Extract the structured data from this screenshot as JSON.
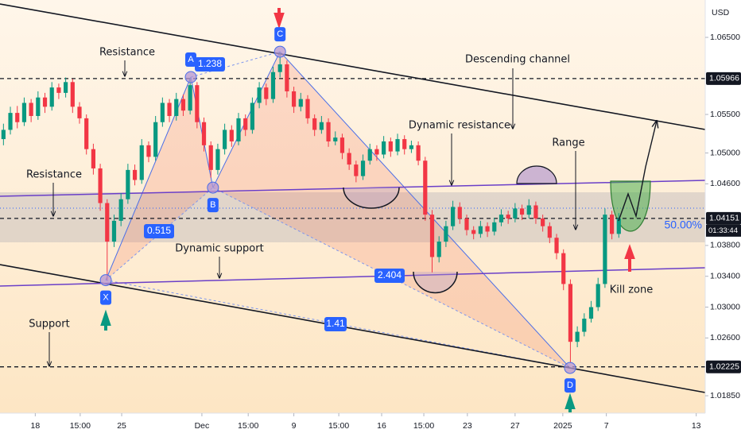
{
  "chart_data": {
    "type": "candlestick",
    "currency": "USD",
    "ylim": [
      1.01624,
      1.06985
    ],
    "xlim": [
      0,
      102
    ],
    "yticks": [
      {
        "value": 1.065,
        "label": "1.06500"
      },
      {
        "value": 1.055,
        "label": "1.05500"
      },
      {
        "value": 1.05,
        "label": "1.05000"
      },
      {
        "value": 1.046,
        "label": "1.04600"
      },
      {
        "value": 1.038,
        "label": "1.03800"
      },
      {
        "value": 1.034,
        "label": "1.03400"
      },
      {
        "value": 1.03,
        "label": "1.03000"
      },
      {
        "value": 1.026,
        "label": "1.02600"
      },
      {
        "value": 1.0185,
        "label": "1.01850"
      }
    ],
    "price_lines": [
      {
        "value": 1.05966,
        "label": "1.05966"
      },
      {
        "value": 1.02225,
        "label": "1.02225"
      },
      {
        "value": 1.04151,
        "label": "1.04151"
      }
    ],
    "countdown": "01:33:44",
    "xticks": [
      {
        "value": 5.1,
        "label": "18"
      },
      {
        "value": 11.6,
        "label": "15:00"
      },
      {
        "value": 17.6,
        "label": "25"
      },
      {
        "value": 29.2,
        "label": "Dec"
      },
      {
        "value": 35.9,
        "label": "15:00"
      },
      {
        "value": 42.5,
        "label": "9"
      },
      {
        "value": 49,
        "label": "15:00"
      },
      {
        "value": 55.2,
        "label": "16"
      },
      {
        "value": 61.3,
        "label": "15:00"
      },
      {
        "value": 67.6,
        "label": "23"
      },
      {
        "value": 74.5,
        "label": "27"
      },
      {
        "value": 81.4,
        "label": "2025"
      },
      {
        "value": 87.7,
        "label": "7"
      },
      {
        "value": 100.7,
        "label": "13"
      }
    ],
    "up_color": "#089981",
    "down_color": "#f23645",
    "ohlc": [
      [
        1.0518,
        1.0538,
        1.051,
        1.053
      ],
      [
        1.053,
        1.056,
        1.0524,
        1.0552
      ],
      [
        1.0552,
        1.0561,
        1.0532,
        1.054
      ],
      [
        1.054,
        1.0572,
        1.0535,
        1.0565
      ],
      [
        1.0565,
        1.057,
        1.054,
        1.0548
      ],
      [
        1.0548,
        1.058,
        1.0543,
        1.0572
      ],
      [
        1.0572,
        1.0578,
        1.0552,
        1.056
      ],
      [
        1.056,
        1.0592,
        1.0555,
        1.0585
      ],
      [
        1.0585,
        1.059,
        1.057,
        1.0578
      ],
      [
        1.0578,
        1.0598,
        1.0572,
        1.0592
      ],
      [
        1.0592,
        1.0596,
        1.0552,
        1.056
      ],
      [
        1.056,
        1.0566,
        1.0538,
        1.0545
      ],
      [
        1.0545,
        1.055,
        1.0498,
        1.0505
      ],
      [
        1.0505,
        1.0512,
        1.0472,
        1.048
      ],
      [
        1.048,
        1.0486,
        1.0425,
        1.0435
      ],
      [
        1.0435,
        1.044,
        1.0335,
        1.0385
      ],
      [
        1.0385,
        1.042,
        1.0378,
        1.0412
      ],
      [
        1.0412,
        1.0448,
        1.0405,
        1.044
      ],
      [
        1.044,
        1.0486,
        1.0434,
        1.0478
      ],
      [
        1.0478,
        1.0485,
        1.0458,
        1.0465
      ],
      [
        1.0465,
        1.0518,
        1.046,
        1.051
      ],
      [
        1.051,
        1.0515,
        1.0488,
        1.0495
      ],
      [
        1.0495,
        1.0548,
        1.049,
        1.054
      ],
      [
        1.054,
        1.0572,
        1.0534,
        1.0565
      ],
      [
        1.0565,
        1.057,
        1.054,
        1.0548
      ],
      [
        1.0548,
        1.0578,
        1.0542,
        1.057
      ],
      [
        1.057,
        1.0576,
        1.0548,
        1.0555
      ],
      [
        1.0555,
        1.0597,
        1.055,
        1.0588
      ],
      [
        1.0588,
        1.0592,
        1.0532,
        1.054
      ],
      [
        1.054,
        1.0546,
        1.0502,
        1.051
      ],
      [
        1.051,
        1.0515,
        1.0468,
        1.0478
      ],
      [
        1.0478,
        1.0512,
        1.0472,
        1.0505
      ],
      [
        1.0505,
        1.0538,
        1.0498,
        1.053
      ],
      [
        1.053,
        1.0536,
        1.0508,
        1.0515
      ],
      [
        1.0515,
        1.0552,
        1.051,
        1.0545
      ],
      [
        1.0545,
        1.055,
        1.0522,
        1.053
      ],
      [
        1.053,
        1.0572,
        1.0525,
        1.0565
      ],
      [
        1.0565,
        1.0592,
        1.0558,
        1.0585
      ],
      [
        1.0585,
        1.059,
        1.0562,
        1.057
      ],
      [
        1.057,
        1.0612,
        1.0565,
        1.0605
      ],
      [
        1.0605,
        1.063,
        1.0598,
        1.0615
      ],
      [
        1.0615,
        1.062,
        1.0572,
        1.058
      ],
      [
        1.058,
        1.0586,
        1.0552,
        1.056
      ],
      [
        1.056,
        1.0578,
        1.0554,
        1.057
      ],
      [
        1.057,
        1.0575,
        1.0538,
        1.0545
      ],
      [
        1.0545,
        1.055,
        1.0522,
        1.053
      ],
      [
        1.053,
        1.0548,
        1.0525,
        1.054
      ],
      [
        1.054,
        1.0545,
        1.0508,
        1.0515
      ],
      [
        1.0515,
        1.0528,
        1.051,
        1.052
      ],
      [
        1.052,
        1.0525,
        1.0492,
        1.05
      ],
      [
        1.05,
        1.0506,
        1.0478,
        1.0485
      ],
      [
        1.0485,
        1.049,
        1.0462,
        1.047
      ],
      [
        1.047,
        1.0498,
        1.0465,
        1.049
      ],
      [
        1.049,
        1.0512,
        1.0485,
        1.0505
      ],
      [
        1.0505,
        1.051,
        1.049,
        1.0498
      ],
      [
        1.0498,
        1.0522,
        1.0493,
        1.0515
      ],
      [
        1.0515,
        1.052,
        1.0495,
        1.0502
      ],
      [
        1.0502,
        1.0525,
        1.0497,
        1.0518
      ],
      [
        1.0518,
        1.0523,
        1.0498,
        1.0505
      ],
      [
        1.0505,
        1.0516,
        1.05,
        1.051
      ],
      [
        1.051,
        1.0515,
        1.0484,
        1.049
      ],
      [
        1.049,
        1.0495,
        1.0412,
        1.042
      ],
      [
        1.042,
        1.0426,
        1.0345,
        1.0365
      ],
      [
        1.0365,
        1.0392,
        1.0358,
        1.0385
      ],
      [
        1.0385,
        1.0412,
        1.0378,
        1.0405
      ],
      [
        1.0405,
        1.0438,
        1.04,
        1.043
      ],
      [
        1.043,
        1.0436,
        1.0408,
        1.0415
      ],
      [
        1.0415,
        1.042,
        1.0393,
        1.04
      ],
      [
        1.04,
        1.0405,
        1.0388,
        1.0395
      ],
      [
        1.0395,
        1.0412,
        1.039,
        1.0405
      ],
      [
        1.0405,
        1.041,
        1.0391,
        1.0398
      ],
      [
        1.0398,
        1.0416,
        1.0393,
        1.041
      ],
      [
        1.041,
        1.0427,
        1.0405,
        1.042
      ],
      [
        1.042,
        1.0425,
        1.0408,
        1.0415
      ],
      [
        1.0415,
        1.0435,
        1.041,
        1.0428
      ],
      [
        1.0428,
        1.0433,
        1.0413,
        1.042
      ],
      [
        1.042,
        1.044,
        1.0415,
        1.0432
      ],
      [
        1.0432,
        1.0437,
        1.0408,
        1.0415
      ],
      [
        1.0415,
        1.042,
        1.0398,
        1.0405
      ],
      [
        1.0405,
        1.041,
        1.0383,
        1.039
      ],
      [
        1.039,
        1.0395,
        1.0362,
        1.037
      ],
      [
        1.037,
        1.0375,
        1.0322,
        1.033
      ],
      [
        1.033,
        1.0336,
        1.0228,
        1.0255
      ],
      [
        1.0255,
        1.0275,
        1.0248,
        1.0268
      ],
      [
        1.0268,
        1.0292,
        1.0262,
        1.0285
      ],
      [
        1.0285,
        1.0308,
        1.028,
        1.03
      ],
      [
        1.03,
        1.0338,
        1.0295,
        1.033
      ],
      [
        1.033,
        1.0428,
        1.0325,
        1.042
      ],
      [
        1.042,
        1.0425,
        1.0388,
        1.0395
      ],
      [
        1.0395,
        1.0422,
        1.039,
        1.0415
      ]
    ],
    "pattern": [
      {
        "label": "X",
        "x": 15.3,
        "y": 1.0335
      },
      {
        "label": "A",
        "x": 27.6,
        "y": 1.05985
      },
      {
        "label": "B",
        "x": 30.8,
        "y": 1.04551
      },
      {
        "label": "C",
        "x": 40.5,
        "y": 1.06314
      },
      {
        "label": "D",
        "x": 82.45,
        "y": 1.02211
      }
    ],
    "ratios": [
      "1.238",
      "0.515",
      "2.404",
      "1.41"
    ],
    "fib_level": "50.00%",
    "annotations": [
      "Resistance",
      "Resistance",
      "Support",
      "Dynamic support",
      "Dynamic resistance",
      "Descending channel",
      "Range",
      "Kill zone"
    ]
  }
}
